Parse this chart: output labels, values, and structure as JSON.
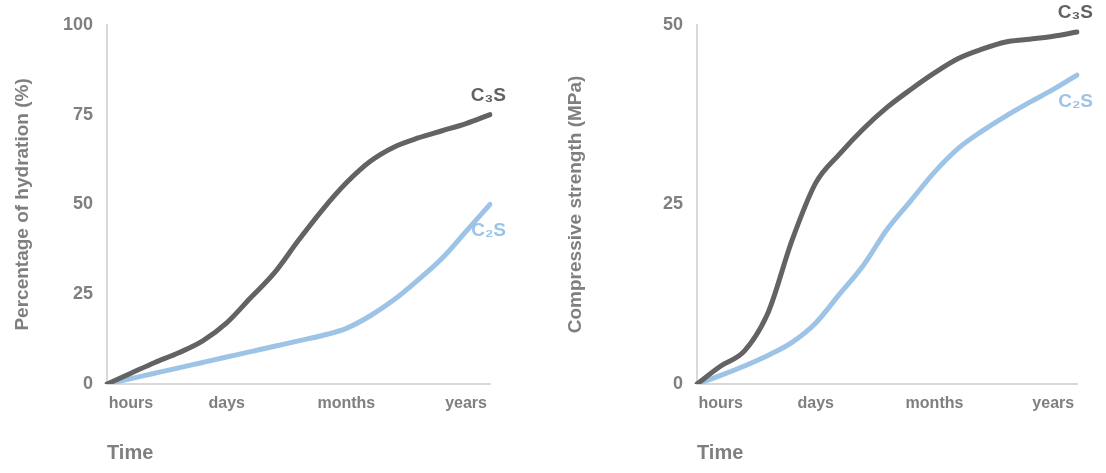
{
  "chart_data": [
    {
      "type": "line",
      "xlabel": "Time",
      "ylabel": "Percentage of hydration (%)",
      "categories": [
        null,
        "hours",
        null,
        null,
        null,
        "days",
        null,
        null,
        null,
        null,
        "months",
        null,
        null,
        null,
        null,
        "years",
        null
      ],
      "ylim": [
        0,
        100
      ],
      "yticks": [
        0,
        25,
        50,
        75,
        100
      ],
      "grid": false,
      "legend": false,
      "marker": "none",
      "line_style": "solid",
      "series": [
        {
          "name": "C₃S",
          "color": "#636363",
          "values": [
            0,
            3,
            6,
            8.7,
            12,
            17,
            24,
            31,
            40,
            48.5,
            56,
            62,
            66,
            68.5,
            70.5,
            72.5,
            75
          ]
        },
        {
          "name": "C₂S",
          "color": "#9dc3e6",
          "values": [
            0,
            1.5,
            3,
            4.5,
            6,
            7.5,
            9,
            10.5,
            12,
            13.5,
            15.5,
            19,
            23.5,
            29,
            35,
            42.5,
            50
          ]
        }
      ]
    },
    {
      "type": "line",
      "xlabel": "Time",
      "ylabel": "Compressive strength (MPa)",
      "categories": [
        null,
        "hours",
        null,
        null,
        null,
        "days",
        null,
        null,
        null,
        null,
        "months",
        null,
        null,
        null,
        null,
        "years",
        null
      ],
      "ylim": [
        0,
        50
      ],
      "yticks": [
        0,
        25,
        50
      ],
      "grid": false,
      "legend": false,
      "marker": "none",
      "line_style": "solid",
      "series": [
        {
          "name": "C₃S",
          "color": "#636363",
          "values": [
            0,
            2.5,
            4.6,
            10,
            20,
            28,
            32,
            35.5,
            38.5,
            41,
            43.3,
            45.3,
            46.6,
            47.6,
            48,
            48.4,
            49
          ]
        },
        {
          "name": "C₂S",
          "color": "#9dc3e6",
          "values": [
            0,
            1.2,
            2.5,
            4,
            5.8,
            8.5,
            12.5,
            16.5,
            21.5,
            25.5,
            29.5,
            32.8,
            35.2,
            37.3,
            39.2,
            41,
            43
          ]
        }
      ]
    }
  ]
}
